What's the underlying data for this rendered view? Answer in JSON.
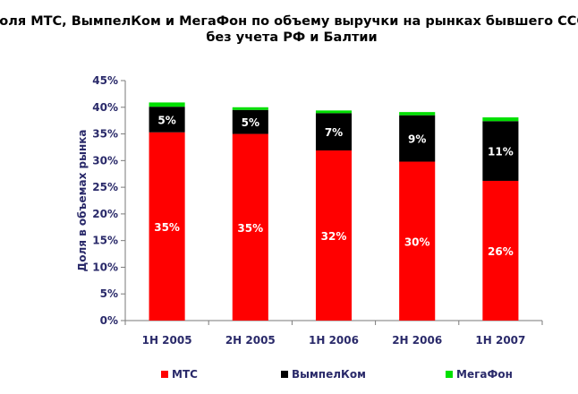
{
  "chart_data": {
    "type": "bar",
    "stacked": true,
    "title_lines": [
      "Доля МТС, ВымпелКом и МегаФон по объему выручки на рынках бывшего СССР",
      "без учета РФ и Балтии"
    ],
    "xlabel": "",
    "ylabel": "Доля в объемах рынка",
    "ylim": [
      0,
      45
    ],
    "yticks": [
      "0%",
      "5%",
      "10%",
      "15%",
      "20%",
      "25%",
      "30%",
      "35%",
      "40%",
      "45%"
    ],
    "categories": [
      "1H 2005",
      "2H 2005",
      "1H 2006",
      "2H 2006",
      "1H 2007"
    ],
    "series": [
      {
        "name": "МТС",
        "color": "#ff0000",
        "label_color": "#ffffff",
        "values": [
          35.3,
          35.0,
          31.9,
          29.8,
          26.2
        ],
        "labels": [
          "35%",
          "35%",
          "32%",
          "30%",
          "26%"
        ]
      },
      {
        "name": "ВымпелКом",
        "color": "#000000",
        "label_color": "#ffffff",
        "values": [
          4.8,
          4.5,
          7.0,
          8.7,
          11.2
        ],
        "labels": [
          "5%",
          "5%",
          "7%",
          "9%",
          "11%"
        ]
      },
      {
        "name": "МегаФон",
        "color": "#00e000",
        "label_color": "#000000",
        "values": [
          0.8,
          0.5,
          0.5,
          0.6,
          0.7
        ],
        "labels": []
      }
    ],
    "grid": false,
    "legend_position": "bottom"
  }
}
